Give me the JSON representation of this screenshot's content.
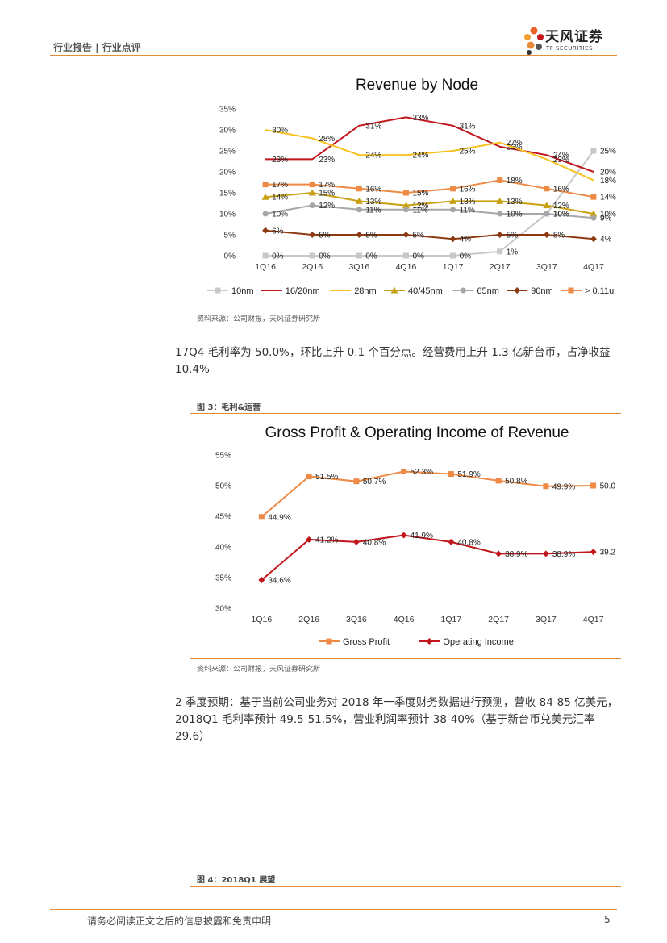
{
  "header": {
    "left": "行业报告 | 行业点评",
    "logo_cn": "天风证券",
    "logo_en": "TF SECURITIES"
  },
  "chart1": {
    "chart_data": {
      "type": "line",
      "title": "Revenue by Node",
      "categories": [
        "1Q16",
        "2Q16",
        "3Q16",
        "4Q16",
        "1Q17",
        "2Q17",
        "3Q17",
        "4Q17"
      ],
      "y_ticks": [
        "0%",
        "5%",
        "10%",
        "15%",
        "20%",
        "25%",
        "30%",
        "35%"
      ],
      "ylim": [
        0,
        35
      ],
      "legend_position": "bottom",
      "series": [
        {
          "name": "10nm",
          "color": "#c8c8c8",
          "marker": "square",
          "values": [
            0,
            0,
            0,
            0,
            0,
            1,
            10,
            25
          ],
          "labels": [
            "0%",
            "0%",
            "0%",
            "0%",
            "0%",
            "1%",
            "10%",
            "25%"
          ]
        },
        {
          "name": "16/20nm",
          "color": "#c0161c",
          "marker": "none",
          "values": [
            23,
            23,
            31,
            33,
            31,
            26,
            24,
            20
          ],
          "labels": [
            "23%",
            "23%",
            "31%",
            "33%",
            "31%",
            "26%",
            "24%",
            "20%"
          ]
        },
        {
          "name": "28nm",
          "color": "#f7c21e",
          "marker": "none",
          "values": [
            30,
            28,
            24,
            24,
            25,
            27,
            23,
            18
          ],
          "labels": [
            "30%",
            "28%",
            "24%",
            "24%",
            "25%",
            "27%",
            "23%",
            "18%"
          ]
        },
        {
          "name": "40/45nm",
          "color": "#c9a012",
          "marker": "triangle",
          "values": [
            14,
            15,
            13,
            12,
            13,
            13,
            12,
            10
          ],
          "labels": [
            "14%",
            "15%",
            "13%",
            "12%",
            "13%",
            "13%",
            "12%",
            "10%"
          ]
        },
        {
          "name": "65nm",
          "color": "#a6a6a6",
          "marker": "circle",
          "values": [
            10,
            12,
            11,
            11,
            11,
            10,
            10,
            9
          ],
          "labels": [
            "10%",
            "12%",
            "11%",
            "11%",
            "11%",
            "10%",
            "10%",
            "9%"
          ]
        },
        {
          "name": "90nm",
          "color": "#8b3a12",
          "marker": "diamond",
          "values": [
            6,
            5,
            5,
            5,
            4,
            5,
            5,
            4
          ],
          "labels": [
            "6%",
            "5%",
            "5%",
            "5%",
            "4%",
            "5%",
            "5%",
            "4%"
          ]
        },
        {
          "name": "> 0.11u",
          "color": "#ed8a45",
          "marker": "square",
          "values": [
            17,
            17,
            16,
            15,
            16,
            18,
            16,
            14
          ],
          "labels": [
            "17%",
            "17%",
            "16%",
            "15%",
            "16%",
            "18%",
            "16%",
            "14%"
          ]
        }
      ]
    },
    "source": "资料来源：公司财报，天风证券研究所"
  },
  "paragraph1": "17Q4 毛利率为 50.0%，环比上升 0.1 个百分点。经营费用上升 1.3 亿新台币，占净收益 10.4%",
  "figure3_label": "图 3：毛利&运营",
  "chart2": {
    "chart_data": {
      "type": "line",
      "title": "Gross Profit & Operating Income of Revenue",
      "categories": [
        "1Q16",
        "2Q16",
        "3Q16",
        "4Q16",
        "1Q17",
        "2Q17",
        "3Q17",
        "4Q17"
      ],
      "y_ticks": [
        "30%",
        "35%",
        "40%",
        "45%",
        "50%",
        "55%"
      ],
      "ylim": [
        30,
        55
      ],
      "legend_position": "bottom",
      "series": [
        {
          "name": "Gross Profit",
          "color": "#ed8a45",
          "marker": "square",
          "values": [
            44.9,
            51.5,
            50.7,
            52.3,
            51.9,
            50.8,
            49.9,
            50.0
          ],
          "labels": [
            "44.9%",
            "51.5%",
            "50.7%",
            "52.3%",
            "51.9%",
            "50.8%",
            "49.9%",
            "50.0"
          ]
        },
        {
          "name": "Operating Income",
          "color": "#c0161c",
          "marker": "diamond",
          "values": [
            34.6,
            41.2,
            40.8,
            41.9,
            40.8,
            38.9,
            38.9,
            39.2
          ],
          "labels": [
            "34.6%",
            "41.2%",
            "40.8%",
            "41.9%",
            "40.8%",
            "38.9%",
            "38.9%",
            "39.2"
          ]
        }
      ]
    },
    "source": "资料来源：公司财报，天风证券研究所"
  },
  "paragraph2": "2 季度预期：基于当前公司业务对 2018 年一季度财务数据进行预测，营收 84-85 亿美元，2018Q1 毛利率预计 49.5-51.5%，营业利润率预计 38-40%（基于新台币兑美元汇率 29.6）",
  "figure4_label": "图 4：2018Q1 展望",
  "footer": {
    "text": "请务必阅读正文之后的信息披露和免责申明",
    "page": "5"
  }
}
